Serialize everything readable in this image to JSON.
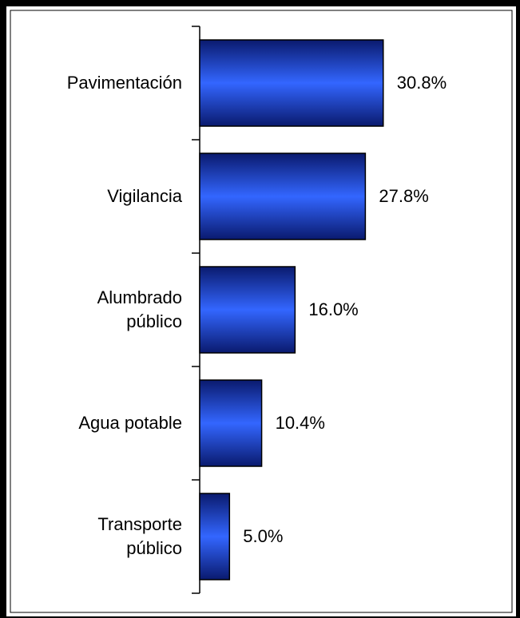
{
  "chart_data": {
    "type": "bar",
    "orientation": "horizontal",
    "categories": [
      "Pavimentación",
      "Vigilancia",
      "Alumbrado\npúblico",
      "Agua potable",
      "Transporte\npúblico"
    ],
    "values": [
      30.8,
      27.8,
      16.0,
      10.4,
      5.0
    ],
    "value_labels": [
      "30.8%",
      "27.8%",
      "16.0%",
      "10.4%",
      "5.0%"
    ],
    "color": "#3366ff",
    "xlim": [
      0,
      50
    ]
  }
}
